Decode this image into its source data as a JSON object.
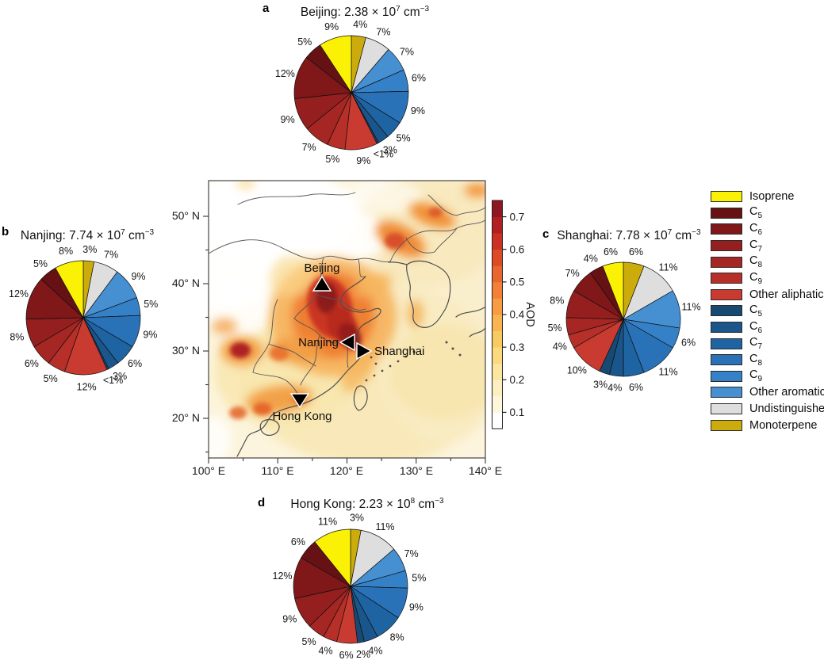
{
  "palette": {
    "Isoprene": "#FBF104",
    "C5 aliphatic": "#661214",
    "C6 aliphatic": "#801719",
    "C7 aliphatic": "#941F1E",
    "C8 aliphatic": "#A62623",
    "C9 aliphatic": "#B72F29",
    "Other aliphatic": "#C93A31",
    "C5 aromatic": "#164A73",
    "C6 aromatic": "#1A568C",
    "C7 aromatic": "#1E64A3",
    "C8 aromatic": "#2A72B8",
    "C9 aromatic": "#3581C8",
    "Other aromatic": "#4690D2",
    "Undistinguished": "#DEDEDE",
    "Monoterpene": "#CCAC0C"
  },
  "legend": {
    "items": [
      {
        "base": "Isoprene",
        "sub": "",
        "category": "Isoprene"
      },
      {
        "base": "C",
        "sub": "5",
        "category": "C5 aliphatic"
      },
      {
        "base": "C",
        "sub": "6",
        "category": "C6 aliphatic"
      },
      {
        "base": "C",
        "sub": "7",
        "category": "C7 aliphatic"
      },
      {
        "base": "C",
        "sub": "8",
        "category": "C8 aliphatic"
      },
      {
        "base": "C",
        "sub": "9",
        "category": "C9 aliphatic"
      },
      {
        "base": "Other aliphatic",
        "sub": "",
        "category": "Other aliphatic"
      },
      {
        "base": "C",
        "sub": "5",
        "category": "C5 aromatic"
      },
      {
        "base": "C",
        "sub": "6",
        "category": "C6 aromatic"
      },
      {
        "base": "C",
        "sub": "7",
        "category": "C7 aromatic"
      },
      {
        "base": "C",
        "sub": "8",
        "category": "C8 aromatic"
      },
      {
        "base": "C",
        "sub": "9",
        "category": "C9 aromatic"
      },
      {
        "base": "Other aromatic",
        "sub": "",
        "category": "Other aromatic"
      },
      {
        "base": "Undistinguished",
        "sub": "",
        "category": "Undistinguished"
      },
      {
        "base": "Monoterpene",
        "sub": "",
        "category": "Monoterpene"
      }
    ]
  },
  "chart_data": [
    {
      "id": "a",
      "panel": "a",
      "type": "pie",
      "city": "Beijing",
      "title_text": "Beijing: 2.38 × 10⁷ cm⁻³",
      "title_main": "Beijing: 2.38 × 10",
      "title_sup": "7",
      "title_tail": " cm",
      "title_sup2": "−3",
      "slices": [
        {
          "category": "Monoterpene",
          "label": "4%",
          "value": 4
        },
        {
          "category": "Undistinguished",
          "label": "7%",
          "value": 7
        },
        {
          "category": "Other aromatic",
          "label": "7%",
          "value": 7
        },
        {
          "category": "C9 aromatic",
          "label": "6%",
          "value": 6
        },
        {
          "category": "C8 aromatic",
          "label": "9%",
          "value": 9
        },
        {
          "category": "C7 aromatic",
          "label": "5%",
          "value": 5
        },
        {
          "category": "C6 aromatic",
          "label": "3%",
          "value": 3
        },
        {
          "category": "C5 aromatic",
          "label": "<1%",
          "value": 0.5
        },
        {
          "category": "Other aliphatic",
          "label": "9%",
          "value": 9
        },
        {
          "category": "C9 aliphatic",
          "label": "5%",
          "value": 5
        },
        {
          "category": "C8 aliphatic",
          "label": "7%",
          "value": 7
        },
        {
          "category": "C7 aliphatic",
          "label": "9%",
          "value": 9
        },
        {
          "category": "C6 aliphatic",
          "label": "12%",
          "value": 12
        },
        {
          "category": "C5 aliphatic",
          "label": "5%",
          "value": 5
        },
        {
          "category": "Isoprene",
          "label": "9%",
          "value": 9
        }
      ]
    },
    {
      "id": "b",
      "panel": "b",
      "type": "pie",
      "city": "Nanjing",
      "title_text": "Nanjing: 7.74 × 10⁷ cm⁻³",
      "title_main": "Nanjing: 7.74 × 10",
      "title_sup": "7",
      "title_tail": " cm",
      "title_sup2": "−3",
      "slices": [
        {
          "category": "Monoterpene",
          "label": "3%",
          "value": 3
        },
        {
          "category": "Undistinguished",
          "label": "7%",
          "value": 7
        },
        {
          "category": "Other aromatic",
          "label": "9%",
          "value": 9
        },
        {
          "category": "C9 aromatic",
          "label": "5%",
          "value": 5
        },
        {
          "category": "C8 aromatic",
          "label": "9%",
          "value": 9
        },
        {
          "category": "C7 aromatic",
          "label": "6%",
          "value": 6
        },
        {
          "category": "C6 aromatic",
          "label": "3%",
          "value": 3
        },
        {
          "category": "C5 aromatic",
          "label": "<1%",
          "value": 0.5
        },
        {
          "category": "Other aliphatic",
          "label": "12%",
          "value": 12
        },
        {
          "category": "C9 aliphatic",
          "label": "5%",
          "value": 5
        },
        {
          "category": "C8 aliphatic",
          "label": "6%",
          "value": 6
        },
        {
          "category": "C7 aliphatic",
          "label": "8%",
          "value": 8
        },
        {
          "category": "C6 aliphatic",
          "label": "12%",
          "value": 12
        },
        {
          "category": "C5 aliphatic",
          "label": "5%",
          "value": 5
        },
        {
          "category": "Isoprene",
          "label": "8%",
          "value": 8
        }
      ]
    },
    {
      "id": "c",
      "panel": "c",
      "type": "pie",
      "city": "Shanghai",
      "title_text": "Shanghai: 7.78 × 10⁷ cm⁻³",
      "title_main": "Shanghai: 7.78 × 10",
      "title_sup": "7",
      "title_tail": " cm",
      "title_sup2": "−3",
      "slices": [
        {
          "category": "Monoterpene",
          "label": "6%",
          "value": 6
        },
        {
          "category": "Undistinguished",
          "label": "11%",
          "value": 11
        },
        {
          "category": "Other aromatic",
          "label": "11%",
          "value": 11
        },
        {
          "category": "C9 aromatic",
          "label": "6%",
          "value": 6
        },
        {
          "category": "C8 aromatic",
          "label": "11%",
          "value": 11
        },
        {
          "category": "C7 aromatic",
          "label": "6%",
          "value": 6
        },
        {
          "category": "C6 aromatic",
          "label": "4%",
          "value": 4
        },
        {
          "category": "C5 aromatic",
          "label": "3%",
          "value": 3
        },
        {
          "category": "Other aliphatic",
          "label": "10%",
          "value": 10
        },
        {
          "category": "C9 aliphatic",
          "label": "4%",
          "value": 4
        },
        {
          "category": "C8 aliphatic",
          "label": "5%",
          "value": 5
        },
        {
          "category": "C7 aliphatic",
          "label": "8%",
          "value": 8
        },
        {
          "category": "C6 aliphatic",
          "label": "7%",
          "value": 7
        },
        {
          "category": "C5 aliphatic",
          "label": "4%",
          "value": 4
        },
        {
          "category": "Isoprene",
          "label": "6%",
          "value": 6
        }
      ]
    },
    {
      "id": "d",
      "panel": "d",
      "type": "pie",
      "city": "Hong Kong",
      "title_text": "Hong Kong: 2.23 × 10⁸ cm⁻³",
      "title_main": "Hong Kong: 2.23 × 10",
      "title_sup": "8",
      "title_tail": " cm",
      "title_sup2": "−3",
      "slices": [
        {
          "category": "Monoterpene",
          "label": "3%",
          "value": 3
        },
        {
          "category": "Undistinguished",
          "label": "11%",
          "value": 11
        },
        {
          "category": "Other aromatic",
          "label": "7%",
          "value": 7
        },
        {
          "category": "C9 aromatic",
          "label": "5%",
          "value": 5
        },
        {
          "category": "C8 aromatic",
          "label": "9%",
          "value": 9
        },
        {
          "category": "C7 aromatic",
          "label": "8%",
          "value": 8
        },
        {
          "category": "C6 aromatic",
          "label": "4%",
          "value": 4
        },
        {
          "category": "C5 aromatic",
          "label": "2%",
          "value": 2
        },
        {
          "category": "Other aliphatic",
          "label": "6%",
          "value": 6
        },
        {
          "category": "C9 aliphatic",
          "label": "4%",
          "value": 4
        },
        {
          "category": "C8 aliphatic",
          "label": "5%",
          "value": 5
        },
        {
          "category": "C7 aliphatic",
          "label": "9%",
          "value": 9
        },
        {
          "category": "C6 aliphatic",
          "label": "12%",
          "value": 12
        },
        {
          "category": "C5 aliphatic",
          "label": "6%",
          "value": 6
        },
        {
          "category": "Isoprene",
          "label": "11%",
          "value": 11
        }
      ]
    },
    {
      "id": "map",
      "type": "heatmap",
      "region": "Eastern China",
      "x_ticks": [
        "100° E",
        "110° E",
        "120° E",
        "130° E",
        "140° E"
      ],
      "y_ticks": [
        "50° N",
        "40° N",
        "30° N",
        "20° N"
      ],
      "cities": [
        {
          "name": "Beijing",
          "marker": "triangle-up"
        },
        {
          "name": "Nanjing",
          "marker": "triangle-left"
        },
        {
          "name": "Shanghai",
          "marker": "triangle-right"
        },
        {
          "name": "Hong Kong",
          "marker": "triangle-down"
        }
      ],
      "colorbar": {
        "label": "AOD",
        "ticks": [
          "0.7",
          "0.6",
          "0.5",
          "0.4",
          "0.3",
          "0.2",
          "0.1"
        ],
        "range": [
          0.05,
          0.75
        ],
        "colors_bottom_to_top": [
          "#FFFFFF",
          "#FEF7DC",
          "#FDEFC0",
          "#FCE69E",
          "#FBD97E",
          "#FACA62",
          "#F9B44F",
          "#F79C43",
          "#F28137",
          "#E9662D",
          "#DC4A26",
          "#CB3022",
          "#B31E20",
          "#8F1721"
        ]
      },
      "hotspots": [
        {
          "area": "North China Plain (Hebei-Shandong-Henan)",
          "approx_aod": 0.75
        },
        {
          "area": "Yangtze River Delta (Nanjing-Shanghai)",
          "approx_aod": 0.6
        },
        {
          "area": "Sichuan Basin",
          "approx_aod": 0.65
        },
        {
          "area": "Northeast China",
          "approx_aod": 0.55
        },
        {
          "area": "Pearl River Delta (Hong Kong-Guangzhou)",
          "approx_aod": 0.45
        }
      ]
    }
  ]
}
